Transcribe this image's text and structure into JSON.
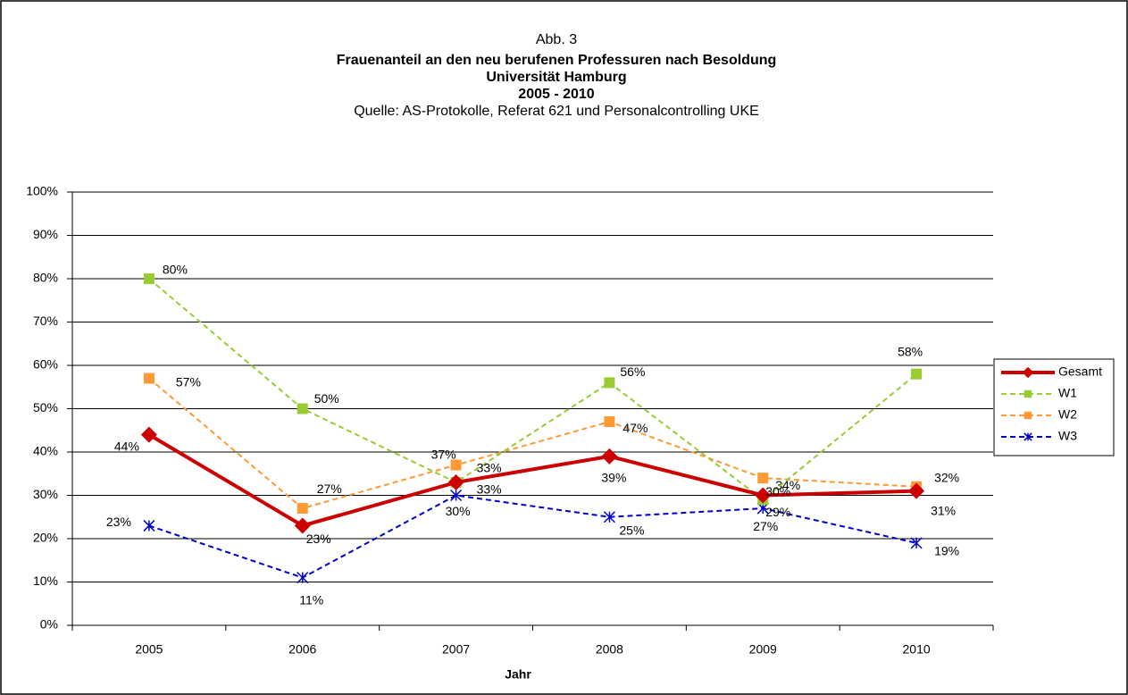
{
  "chart_data": {
    "type": "line",
    "title": "Abb. 3",
    "subtitle": [
      "Frauenanteil an den neu berufenen Professuren nach Besoldung",
      "Universität Hamburg",
      "2005 - 2010"
    ],
    "source": "Quelle: AS-Protokolle, Referat 621 und Personalcontrolling UKE",
    "x_label": "Jahr",
    "categories": [
      "2005",
      "2006",
      "2007",
      "2008",
      "2009",
      "2010"
    ],
    "series": [
      {
        "name": "Gesamt",
        "color": "#cc0000",
        "marker": "diamond",
        "dashed": false,
        "values": [
          44,
          23,
          33,
          39,
          30,
          31
        ],
        "value_labels": [
          "44%",
          "23%",
          "33%",
          "39%",
          "30%",
          "31%"
        ]
      },
      {
        "name": "W1",
        "color": "#99cc33",
        "marker": "square",
        "dashed": true,
        "values": [
          80,
          50,
          33,
          56,
          29,
          58
        ],
        "value_labels": [
          "80%",
          "50%",
          "33%",
          "56%",
          "29%",
          "58%"
        ]
      },
      {
        "name": "W2",
        "color": "#ff9933",
        "marker": "square",
        "dashed": true,
        "values": [
          57,
          27,
          37,
          47,
          34,
          32
        ],
        "value_labels": [
          "57%",
          "27%",
          "37%",
          "47%",
          "34%",
          "32%"
        ]
      },
      {
        "name": "W3",
        "color": "#0000cc",
        "marker": "star",
        "dashed": true,
        "values": [
          23,
          11,
          30,
          25,
          27,
          19
        ],
        "value_labels": [
          "23%",
          "11%",
          "30%",
          "25%",
          "27%",
          "19%"
        ]
      }
    ],
    "ylim": [
      0,
      100
    ],
    "yticks": [
      {
        "value": 0,
        "label": "0%"
      },
      {
        "value": 10,
        "label": "10%"
      },
      {
        "value": 20,
        "label": "20%"
      },
      {
        "value": 30,
        "label": "30%"
      },
      {
        "value": 40,
        "label": "40%"
      },
      {
        "value": 50,
        "label": "50%"
      },
      {
        "value": 60,
        "label": "60%"
      },
      {
        "value": 70,
        "label": "70%"
      },
      {
        "value": 80,
        "label": "80%"
      },
      {
        "value": 90,
        "label": "90%"
      },
      {
        "value": 100,
        "label": "100%"
      }
    ],
    "grid": true,
    "legend": "right"
  }
}
